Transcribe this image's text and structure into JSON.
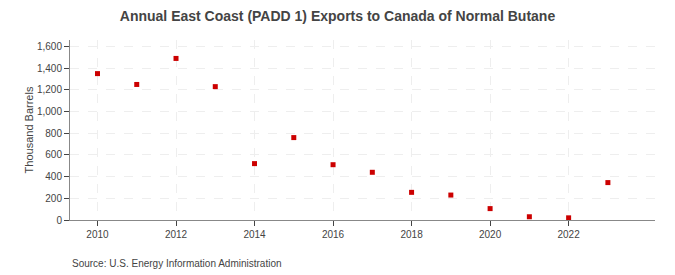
{
  "chart_data": {
    "type": "scatter",
    "title": "Annual East Coast (PADD 1) Exports to Canada of Normal Butane",
    "ylabel": "Thousand Barrels",
    "annotations": [
      "Source: U.S. Energy Information Administration"
    ],
    "x": [
      2010,
      2011,
      2012,
      2013,
      2014,
      2015,
      2016,
      2017,
      2018,
      2019,
      2020,
      2021,
      2022,
      2023
    ],
    "values": [
      1350,
      1250,
      1490,
      1230,
      520,
      760,
      510,
      440,
      255,
      230,
      105,
      30,
      20,
      345
    ],
    "color": "#cc0000",
    "marker": "square",
    "xlim": [
      2009.3,
      2024.2
    ],
    "xticks": [
      2010,
      2012,
      2014,
      2016,
      2018,
      2020,
      2022
    ],
    "ylim": [
      0,
      1660
    ],
    "yticks": [
      0,
      200,
      400,
      600,
      800,
      {
        "value": 1000,
        "label": "1,000"
      },
      {
        "value": 1200,
        "label": "1,200"
      },
      {
        "value": 1400,
        "label": "1,400"
      },
      {
        "value": 1600,
        "label": "1,600"
      }
    ],
    "grid": true
  }
}
